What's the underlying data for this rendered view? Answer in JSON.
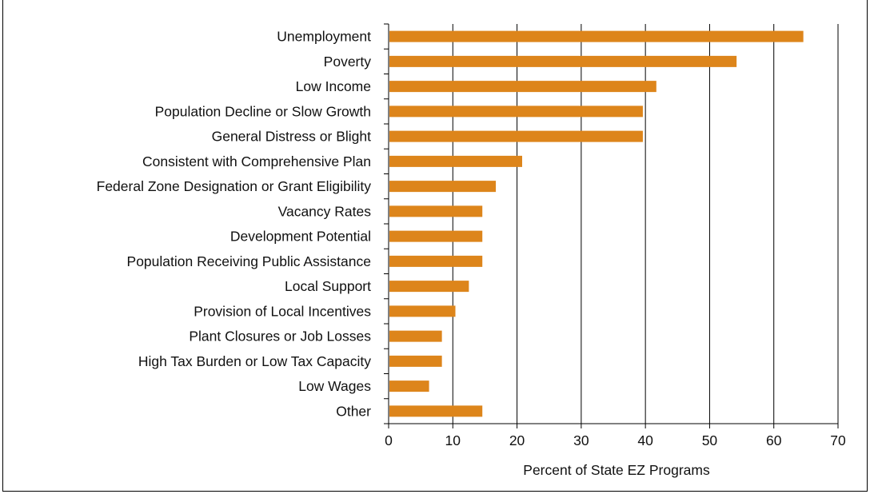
{
  "chart_data": {
    "type": "bar",
    "orientation": "horizontal",
    "title": "",
    "xlabel": "Percent of State EZ Programs",
    "ylabel": "",
    "xlim": [
      0,
      70
    ],
    "xticks": [
      0,
      10,
      20,
      30,
      40,
      50,
      60,
      70
    ],
    "grid": "vertical",
    "bar_color": "#DD851B",
    "categories": [
      "Unemployment",
      "Poverty",
      "Low Income",
      "Population Decline or Slow Growth",
      "General Distress or Blight",
      "Consistent with Comprehensive Plan",
      "Federal Zone Designation or Grant Eligibility",
      "Vacancy Rates",
      "Development Potential",
      "Population Receiving Public Assistance",
      "Local Support",
      "Provision of Local Incentives",
      "Plant Closures or Job Losses",
      "High Tax Burden or Low Tax Capacity",
      "Low Wages",
      "Other"
    ],
    "values": [
      64.6,
      54.2,
      41.7,
      39.6,
      39.6,
      20.8,
      16.7,
      14.6,
      14.6,
      14.6,
      12.5,
      10.4,
      8.3,
      8.3,
      6.3,
      14.6
    ]
  }
}
